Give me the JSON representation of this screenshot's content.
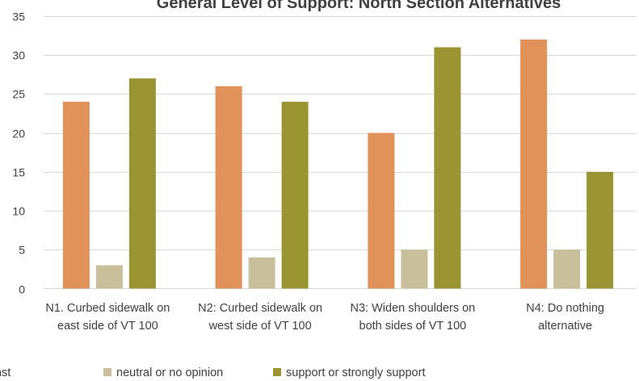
{
  "chart_data": {
    "type": "bar",
    "title": "General Level of Support: North Section Alternatives",
    "categories": [
      [
        "N1. Curbed sidewalk on",
        "east side of VT 100"
      ],
      [
        "N2: Curbed sidewalk on",
        "west side of VT 100"
      ],
      [
        "N3: Widen shoulders on",
        "both sides of VT 100"
      ],
      [
        "N4: Do nothing",
        "alternative"
      ]
    ],
    "series": [
      {
        "name": "strongly against or against",
        "color": "#E0925A",
        "values": [
          24,
          26,
          20,
          32
        ]
      },
      {
        "name": "neutral or no opinion",
        "color": "#C9BF9C",
        "values": [
          3,
          4,
          5,
          5
        ]
      },
      {
        "name": "support or strongly support",
        "color": "#9A9432",
        "values": [
          27,
          24,
          31,
          15
        ]
      }
    ],
    "ylim": [
      0,
      35
    ],
    "yticks": [
      0,
      5,
      10,
      15,
      20,
      25,
      30,
      35
    ],
    "grid": true,
    "legend_position": "bottom"
  }
}
